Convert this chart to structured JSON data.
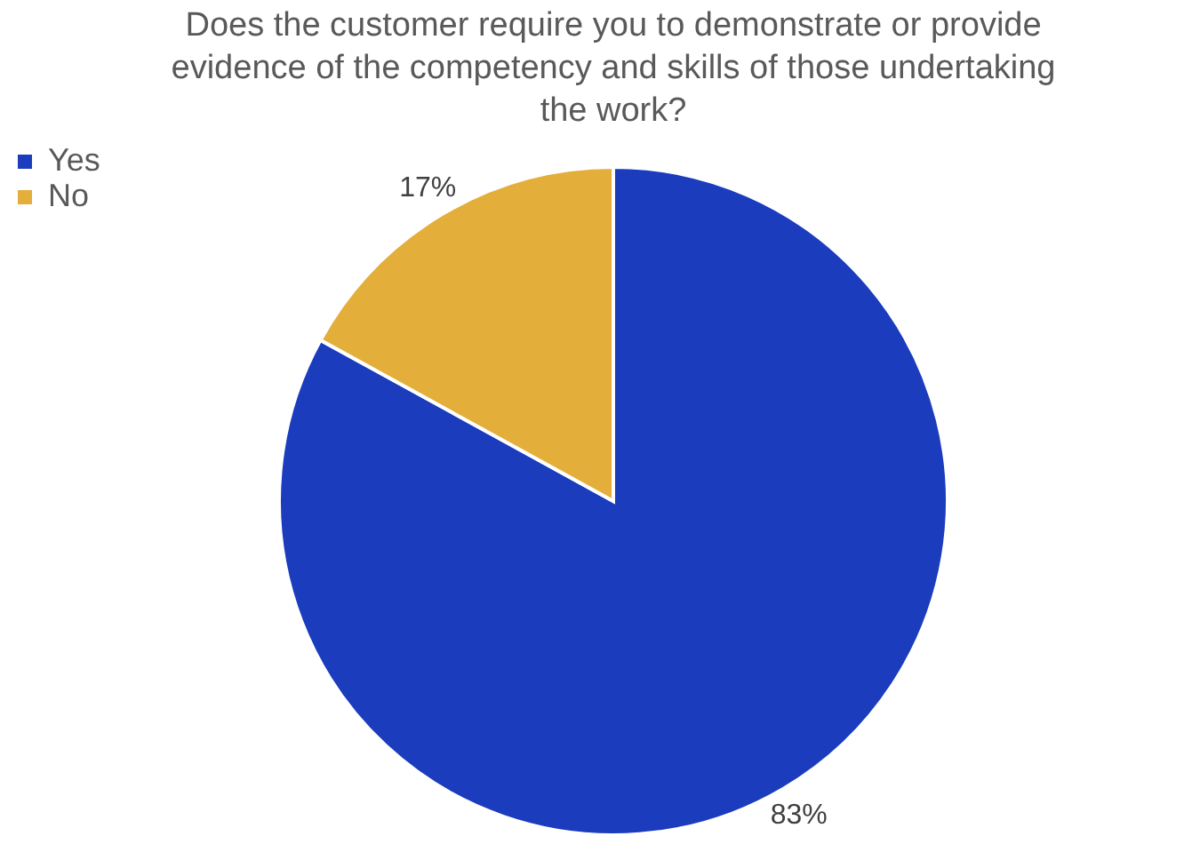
{
  "chart_data": {
    "type": "pie",
    "title": "Does the customer require you to demonstrate or provide evidence of the competency and skills of those undertaking the work?",
    "categories": [
      "Yes",
      "No"
    ],
    "values": [
      83,
      17
    ],
    "colors": [
      "#1a3cbd",
      "#e3ae3a"
    ],
    "value_labels": [
      "83%",
      "17%"
    ],
    "legend": "left"
  }
}
